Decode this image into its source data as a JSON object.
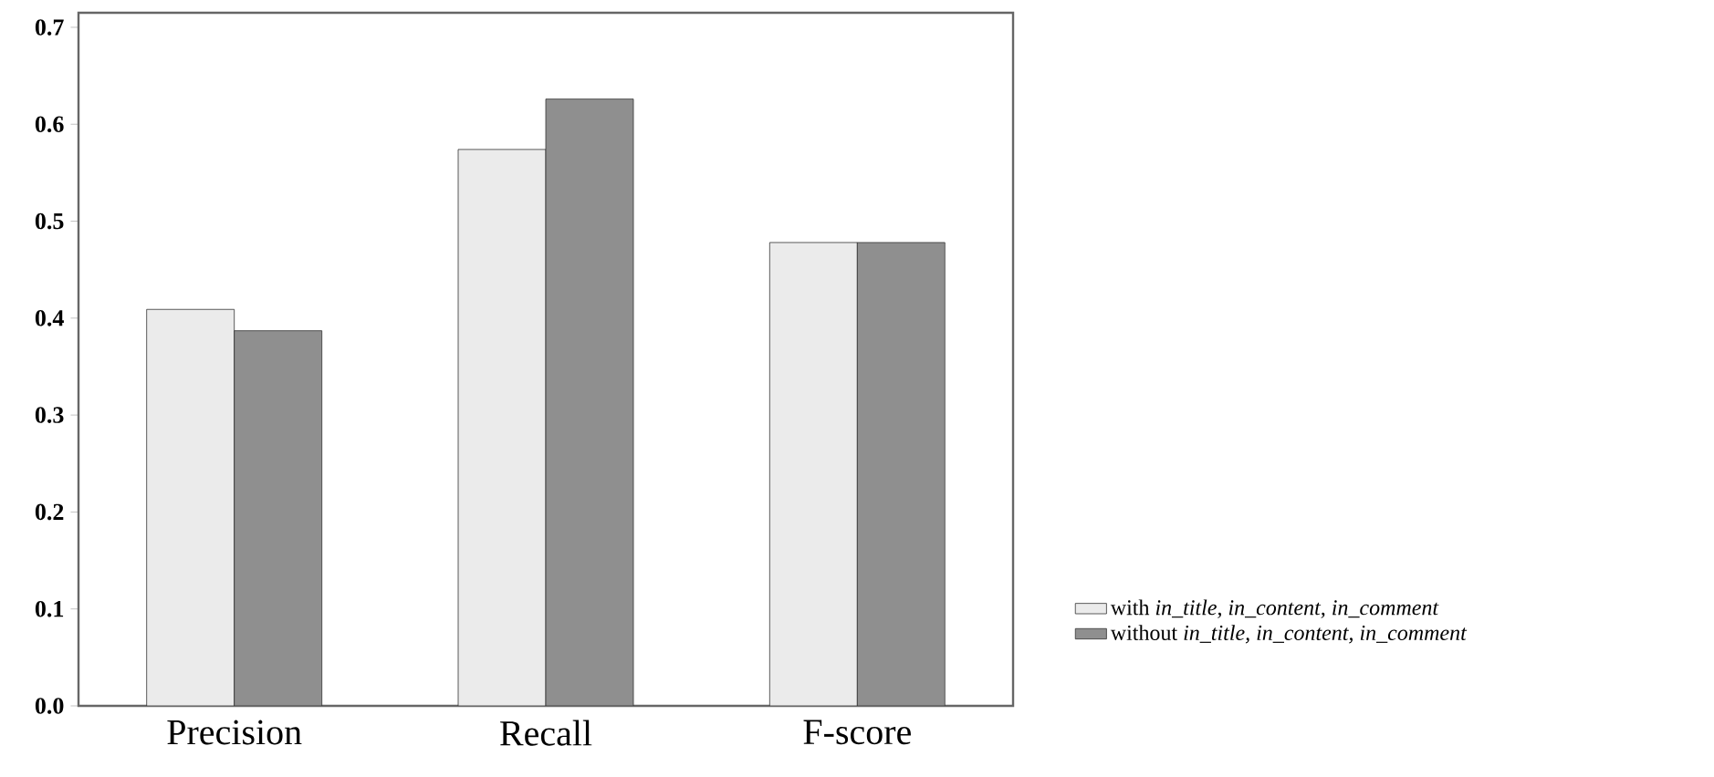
{
  "chart_data": {
    "type": "bar",
    "categories": [
      "Precision",
      "Recall",
      "F-score"
    ],
    "series": [
      {
        "name": "with *in_title, in_content, in_comment*",
        "color": "#ebebeb",
        "values": [
          0.409,
          0.574,
          0.478
        ]
      },
      {
        "name": "without *in_title, in_content, in_comment*",
        "color": "#8f8f8f",
        "values": [
          0.387,
          0.626,
          0.478
        ]
      }
    ],
    "ylim": [
      0,
      0.715
    ],
    "yticks": [
      {
        "value": 0,
        "label": "0.0"
      },
      {
        "value": 0.1,
        "label": "0.1"
      },
      {
        "value": 0.2,
        "label": "0.2"
      },
      {
        "value": 0.3,
        "label": "0.3"
      },
      {
        "value": 0.4,
        "label": "0.4"
      },
      {
        "value": 0.5,
        "label": "0.5"
      },
      {
        "value": 0.6,
        "label": "0.6"
      },
      {
        "value": 0.7,
        "label": "0.7"
      }
    ],
    "legend": "right",
    "grid": false
  }
}
